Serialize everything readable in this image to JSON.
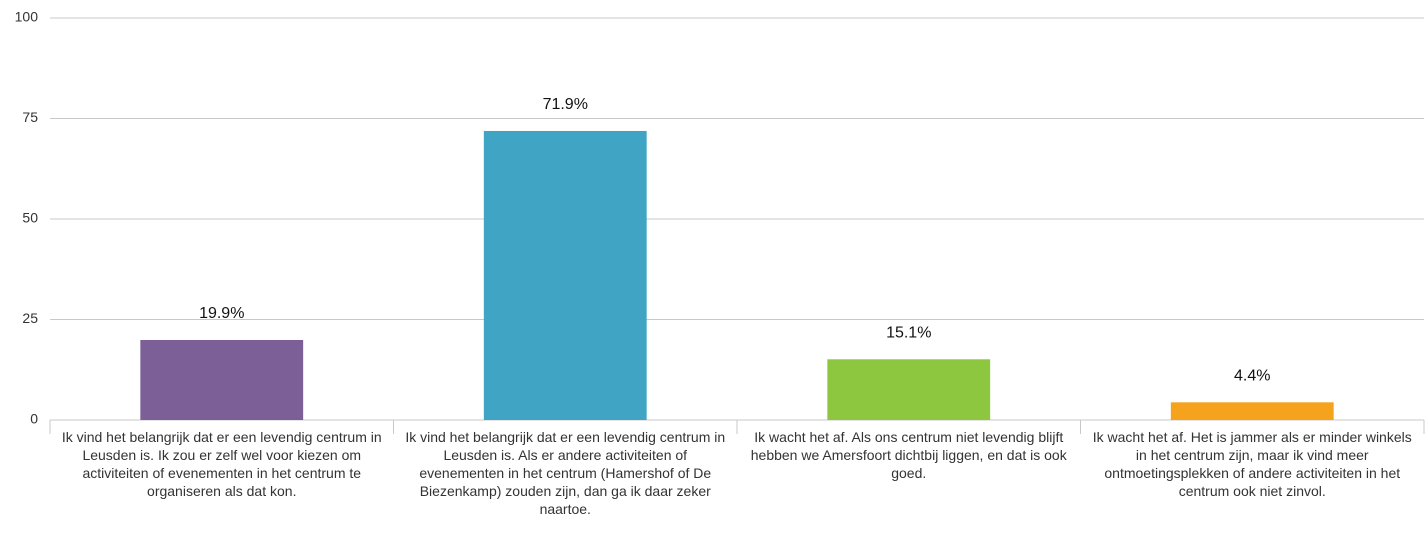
{
  "chart_data": {
    "type": "bar",
    "categories": [
      "Ik vind het belangrijk dat er een levendig centrum in Leusden is. Ik zou er zelf wel voor kiezen om activiteiten of evenementen in het centrum te organiseren als dat kon.",
      "Ik vind het belangrijk dat er een levendig centrum in Leusden is. Als er andere activiteiten of evenementen in het centrum (Hamershof of De Biezenkamp) zouden zijn, dan ga ik daar zeker naartoe.",
      "Ik wacht het af. Als ons centrum niet levendig blijft hebben we Amersfoort dichtbij liggen, en dat is ook goed.",
      "Ik wacht het af. Het is jammer als er minder winkels in het centrum zijn, maar ik vind meer ontmoetingsplekken of andere activiteiten in het centrum ook niet zinvol."
    ],
    "values": [
      19.9,
      71.9,
      15.1,
      4.4
    ],
    "value_labels": [
      "19.9%",
      "71.9%",
      "15.1%",
      "4.4%"
    ],
    "colors": [
      "#7b5f96",
      "#40a4c4",
      "#8dc63f",
      "#f5a31c"
    ],
    "ylim": [
      0,
      100
    ],
    "yticks": [
      0,
      25,
      50,
      75,
      100
    ],
    "grid": true
  }
}
